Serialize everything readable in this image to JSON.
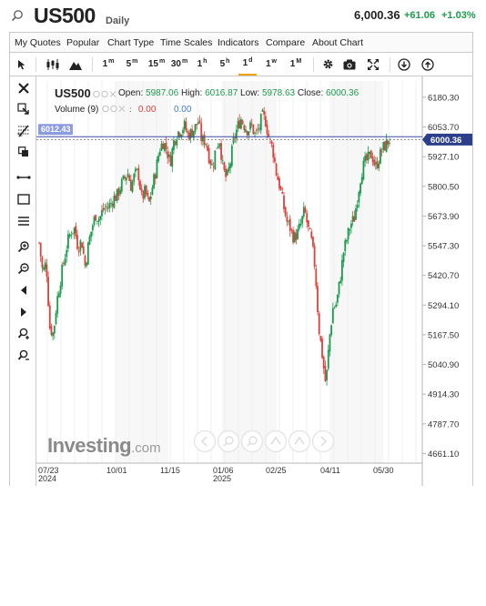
{
  "header": {
    "symbol": "US500",
    "period": "Daily",
    "price": "6,000.36",
    "change": "+61.06",
    "change_pct": "+1.03%"
  },
  "menu": [
    "My Quotes",
    "Popular",
    "Chart Type",
    "Time Scales",
    "Indicators",
    "Compare",
    "About Chart"
  ],
  "toolbar": {
    "timeframes": [
      "1m",
      "5m",
      "15m",
      "30m",
      "1h",
      "5h",
      "1d",
      "1w",
      "1M"
    ],
    "active_timeframe": "1d"
  },
  "legend": {
    "symbol": "US500",
    "open_label": "Open:",
    "open": "5987.06",
    "high_label": "High:",
    "high": "6016.87",
    "low_label": "Low:",
    "low": "5978.63",
    "close_label": "Close:",
    "close": "6000.36",
    "volume_label": "Volume (9)",
    "volume_val1": "0.00",
    "volume_val2": "0.00"
  },
  "watermark": {
    "brand": "Investing",
    "suffix": ".com"
  },
  "colors": {
    "up": "#1a9b4b",
    "down": "#e0413b",
    "price_tag": "#2c3f8a",
    "line_tag": "#8d9be0"
  },
  "chart_data": {
    "type": "candlestick",
    "y_ticks": [
      "6180.30",
      "6053.70",
      "5927.10",
      "5800.50",
      "5673.90",
      "5547.30",
      "5420.70",
      "5294.10",
      "5167.50",
      "5040.90",
      "4914.30",
      "4787.70",
      "4661.10"
    ],
    "x_ticks": [
      {
        "label": "07/23",
        "sub": "2024"
      },
      {
        "label": "10/01",
        "sub": ""
      },
      {
        "label": "11/15",
        "sub": ""
      },
      {
        "label": "01/06",
        "sub": "2025"
      },
      {
        "label": "02/25",
        "sub": ""
      },
      {
        "label": "04/11",
        "sub": ""
      },
      {
        "label": "05/30",
        "sub": ""
      }
    ],
    "ylim": [
      4620,
      6250
    ],
    "last_price_label": "6000.36",
    "horizontal_line_label": "6012.43",
    "horizontal_line_value": 6012.43,
    "close_path": [
      [
        0,
        5560
      ],
      [
        4,
        5430
      ],
      [
        8,
        5480
      ],
      [
        12,
        5200
      ],
      [
        16,
        5170
      ],
      [
        20,
        5310
      ],
      [
        24,
        5400
      ],
      [
        28,
        5480
      ],
      [
        32,
        5560
      ],
      [
        36,
        5610
      ],
      [
        40,
        5620
      ],
      [
        44,
        5540
      ],
      [
        48,
        5570
      ],
      [
        52,
        5460
      ],
      [
        56,
        5560
      ],
      [
        60,
        5630
      ],
      [
        64,
        5680
      ],
      [
        68,
        5660
      ],
      [
        72,
        5700
      ],
      [
        76,
        5710
      ],
      [
        80,
        5720
      ],
      [
        84,
        5750
      ],
      [
        88,
        5760
      ],
      [
        92,
        5800
      ],
      [
        96,
        5830
      ],
      [
        100,
        5860
      ],
      [
        104,
        5800
      ],
      [
        108,
        5850
      ],
      [
        112,
        5860
      ],
      [
        116,
        5750
      ],
      [
        120,
        5780
      ],
      [
        124,
        5720
      ],
      [
        128,
        5800
      ],
      [
        132,
        5870
      ],
      [
        136,
        5960
      ],
      [
        140,
        5990
      ],
      [
        144,
        5960
      ],
      [
        148,
        5900
      ],
      [
        152,
        5990
      ],
      [
        156,
        6030
      ],
      [
        160,
        6040
      ],
      [
        164,
        6060
      ],
      [
        168,
        6020
      ],
      [
        172,
        6030
      ],
      [
        176,
        6050
      ],
      [
        180,
        6080
      ],
      [
        184,
        5990
      ],
      [
        188,
        6000
      ],
      [
        192,
        5930
      ],
      [
        196,
        5880
      ],
      [
        200,
        5970
      ],
      [
        204,
        6000
      ],
      [
        208,
        5870
      ],
      [
        212,
        5830
      ],
      [
        216,
        5900
      ],
      [
        220,
        6000
      ],
      [
        224,
        6050
      ],
      [
        228,
        6090
      ],
      [
        232,
        6060
      ],
      [
        236,
        6040
      ],
      [
        240,
        6060
      ],
      [
        244,
        6020
      ],
      [
        248,
        6040
      ],
      [
        252,
        6100
      ],
      [
        256,
        6080
      ],
      [
        260,
        6000
      ],
      [
        264,
        5960
      ],
      [
        268,
        5860
      ],
      [
        272,
        5800
      ],
      [
        276,
        5720
      ],
      [
        280,
        5650
      ],
      [
        284,
        5620
      ],
      [
        288,
        5580
      ],
      [
        292,
        5600
      ],
      [
        296,
        5640
      ],
      [
        300,
        5700
      ],
      [
        304,
        5620
      ],
      [
        308,
        5560
      ],
      [
        312,
        5450
      ],
      [
        316,
        5200
      ],
      [
        320,
        5080
      ],
      [
        324,
        4950
      ],
      [
        328,
        5150
      ],
      [
        332,
        5280
      ],
      [
        336,
        5300
      ],
      [
        340,
        5400
      ],
      [
        344,
        5520
      ],
      [
        348,
        5580
      ],
      [
        352,
        5640
      ],
      [
        356,
        5660
      ],
      [
        360,
        5760
      ],
      [
        364,
        5860
      ],
      [
        368,
        5900
      ],
      [
        372,
        5920
      ],
      [
        376,
        5940
      ],
      [
        380,
        5880
      ],
      [
        384,
        5920
      ],
      [
        388,
        5960
      ],
      [
        392,
        5980
      ],
      [
        396,
        6000
      ]
    ]
  }
}
